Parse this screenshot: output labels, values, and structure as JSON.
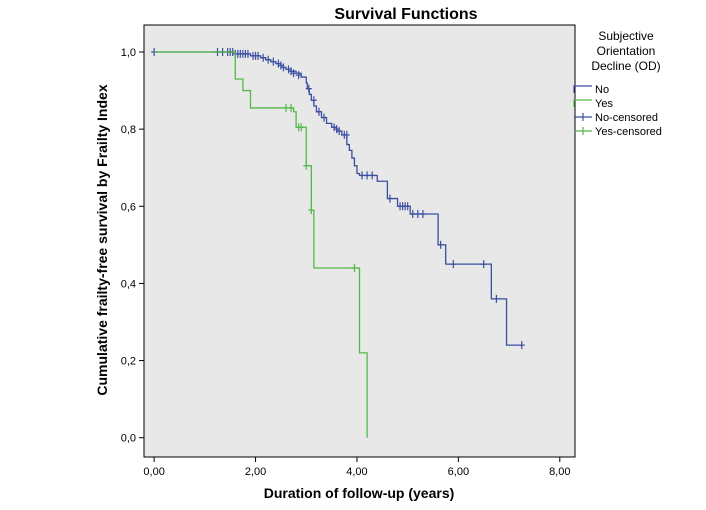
{
  "chart_data": {
    "type": "line",
    "title": "Survival Functions",
    "xlabel": "Duration of follow-up (years)",
    "ylabel": "Cumulative frailty-free survival by Frailty Index",
    "xlim": [
      -0.2,
      8.3
    ],
    "ylim": [
      -0.05,
      1.07
    ],
    "x_ticks": [
      0,
      2,
      4,
      6,
      8
    ],
    "x_tick_labels": [
      "0,00",
      "2,00",
      "4,00",
      "6,00",
      "8,00"
    ],
    "y_ticks": [
      0,
      0.2,
      0.4,
      0.6,
      0.8,
      1.0
    ],
    "y_tick_labels": [
      "0,0",
      "0,2",
      "0,4",
      "0,6",
      "0,8",
      "1,0"
    ],
    "grid": false,
    "background": "#e8e8e8",
    "legend": {
      "title": [
        "Subjective",
        "Orientation",
        "Decline (OD)"
      ],
      "placement": "right",
      "entries": [
        "No",
        "Yes",
        "No-censored",
        "Yes-censored"
      ]
    },
    "series": [
      {
        "name": "No",
        "color": "#3a4fa0",
        "step": [
          [
            0,
            1.0
          ],
          [
            1.6,
            0.995
          ],
          [
            1.9,
            0.99
          ],
          [
            2.1,
            0.985
          ],
          [
            2.2,
            0.98
          ],
          [
            2.3,
            0.975
          ],
          [
            2.4,
            0.97
          ],
          [
            2.5,
            0.965
          ],
          [
            2.55,
            0.96
          ],
          [
            2.6,
            0.955
          ],
          [
            2.7,
            0.95
          ],
          [
            2.8,
            0.945
          ],
          [
            2.9,
            0.935
          ],
          [
            3.0,
            0.92
          ],
          [
            3.02,
            0.905
          ],
          [
            3.06,
            0.89
          ],
          [
            3.1,
            0.875
          ],
          [
            3.15,
            0.86
          ],
          [
            3.2,
            0.845
          ],
          [
            3.3,
            0.83
          ],
          [
            3.4,
            0.815
          ],
          [
            3.5,
            0.805
          ],
          [
            3.6,
            0.795
          ],
          [
            3.7,
            0.785
          ],
          [
            3.8,
            0.76
          ],
          [
            3.85,
            0.745
          ],
          [
            3.9,
            0.725
          ],
          [
            3.95,
            0.705
          ],
          [
            4.0,
            0.685
          ],
          [
            4.05,
            0.68
          ],
          [
            4.4,
            0.665
          ],
          [
            4.6,
            0.62
          ],
          [
            4.8,
            0.6
          ],
          [
            5.05,
            0.58
          ],
          [
            5.6,
            0.5
          ],
          [
            5.75,
            0.45
          ],
          [
            6.65,
            0.36
          ],
          [
            6.95,
            0.24
          ],
          [
            7.25,
            0.24
          ]
        ],
        "censored": [
          [
            0.0,
            1.0
          ],
          [
            1.25,
            1.0
          ],
          [
            1.35,
            1.0
          ],
          [
            1.45,
            1.0
          ],
          [
            1.5,
            1.0
          ],
          [
            1.55,
            1.0
          ],
          [
            1.6,
            0.995
          ],
          [
            1.65,
            0.995
          ],
          [
            1.7,
            0.995
          ],
          [
            1.75,
            0.995
          ],
          [
            1.8,
            0.995
          ],
          [
            1.85,
            0.995
          ],
          [
            1.95,
            0.99
          ],
          [
            2.0,
            0.99
          ],
          [
            2.05,
            0.99
          ],
          [
            2.15,
            0.985
          ],
          [
            2.25,
            0.98
          ],
          [
            2.35,
            0.975
          ],
          [
            2.45,
            0.97
          ],
          [
            2.5,
            0.965
          ],
          [
            2.55,
            0.96
          ],
          [
            2.65,
            0.955
          ],
          [
            2.7,
            0.95
          ],
          [
            2.75,
            0.945
          ],
          [
            2.85,
            0.94
          ],
          [
            3.05,
            0.905
          ],
          [
            3.15,
            0.875
          ],
          [
            3.25,
            0.845
          ],
          [
            3.35,
            0.83
          ],
          [
            3.55,
            0.805
          ],
          [
            3.6,
            0.8
          ],
          [
            3.65,
            0.795
          ],
          [
            3.75,
            0.785
          ],
          [
            3.8,
            0.785
          ],
          [
            4.1,
            0.68
          ],
          [
            4.2,
            0.68
          ],
          [
            4.3,
            0.68
          ],
          [
            4.65,
            0.62
          ],
          [
            4.85,
            0.6
          ],
          [
            4.9,
            0.6
          ],
          [
            4.95,
            0.6
          ],
          [
            5.0,
            0.6
          ],
          [
            5.1,
            0.58
          ],
          [
            5.2,
            0.58
          ],
          [
            5.3,
            0.58
          ],
          [
            5.65,
            0.5
          ],
          [
            5.9,
            0.45
          ],
          [
            6.5,
            0.45
          ],
          [
            6.75,
            0.36
          ],
          [
            7.25,
            0.24
          ]
        ]
      },
      {
        "name": "Yes",
        "color": "#52b848",
        "step": [
          [
            0,
            1.0
          ],
          [
            1.6,
            0.93
          ],
          [
            1.75,
            0.9
          ],
          [
            1.9,
            0.855
          ],
          [
            2.75,
            0.845
          ],
          [
            2.8,
            0.805
          ],
          [
            3.0,
            0.705
          ],
          [
            3.1,
            0.59
          ],
          [
            3.15,
            0.44
          ],
          [
            4.05,
            0.22
          ],
          [
            4.2,
            0.0
          ]
        ],
        "censored": [
          [
            2.6,
            0.855
          ],
          [
            2.7,
            0.855
          ],
          [
            2.85,
            0.805
          ],
          [
            2.9,
            0.805
          ],
          [
            3.0,
            0.705
          ],
          [
            3.1,
            0.59
          ],
          [
            3.95,
            0.44
          ]
        ]
      }
    ]
  }
}
